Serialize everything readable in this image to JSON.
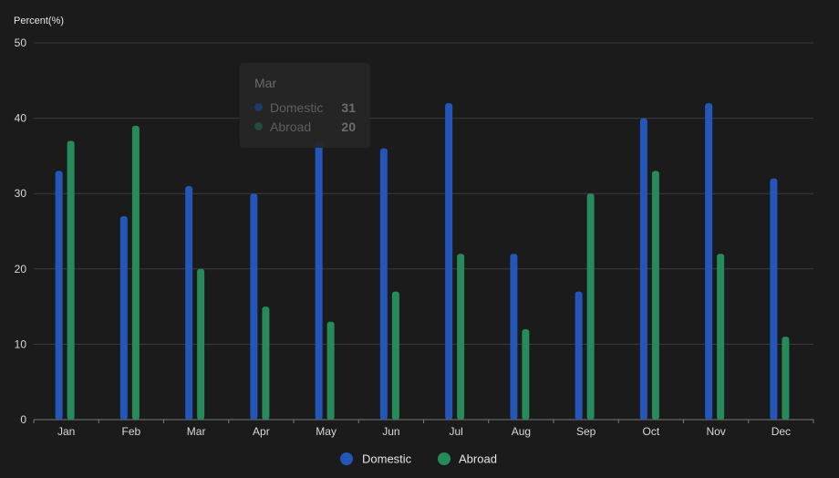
{
  "chart_data": {
    "type": "bar",
    "ylabel": "Percent(%)",
    "ylim": [
      0,
      50
    ],
    "yticks": [
      0,
      10,
      20,
      30,
      40,
      50
    ],
    "grid": true,
    "legend_position": "bottom",
    "categories": [
      "Jan",
      "Feb",
      "Mar",
      "Apr",
      "May",
      "Jun",
      "Jul",
      "Aug",
      "Sep",
      "Oct",
      "Nov",
      "Dec"
    ],
    "series": [
      {
        "name": "Domestic",
        "color": "#2455b8",
        "values": [
          33,
          27,
          31,
          30,
          37,
          36,
          42,
          22,
          17,
          40,
          42,
          32
        ]
      },
      {
        "name": "Abroad",
        "color": "#278a5b",
        "values": [
          37,
          39,
          20,
          15,
          13,
          17,
          22,
          12,
          30,
          33,
          22,
          11
        ]
      }
    ]
  },
  "tooltip": {
    "title": "Mar",
    "rows": [
      {
        "name": "Domestic",
        "value": "31",
        "color": "#1f3a6b"
      },
      {
        "name": "Abroad",
        "value": "20",
        "color": "#1f4d38"
      }
    ]
  }
}
